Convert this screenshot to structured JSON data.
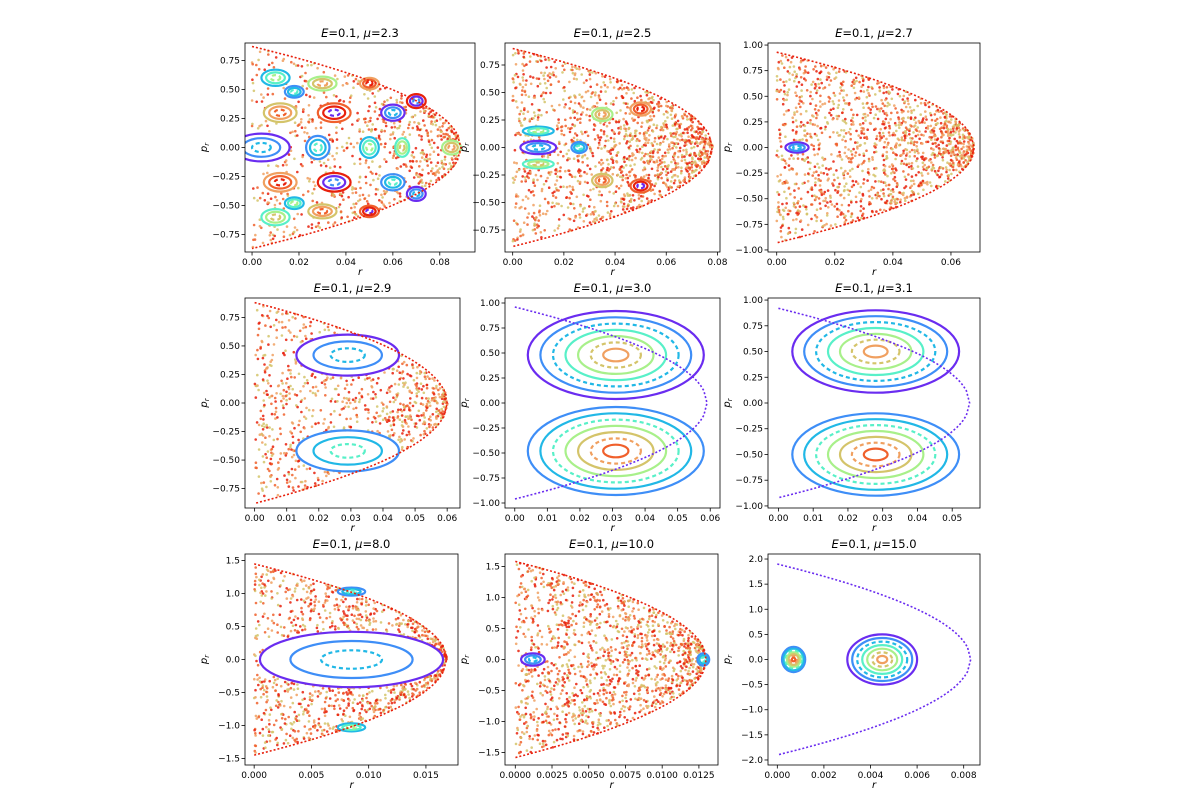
{
  "chart_data": [
    {
      "type": "scatter",
      "title_prefix": "E",
      "title_eq": "=0.1, ",
      "title_mu": "μ",
      "title_val": "=2.3",
      "xlabel": "r",
      "ylabel": "p",
      "ylabel_sub": "r",
      "xlim": [
        -0.003,
        0.095
      ],
      "ylim": [
        -0.9,
        0.9
      ],
      "xticks": [
        {
          "v": 0,
          "l": "0.00"
        },
        {
          "v": 0.02,
          "l": "0.02"
        },
        {
          "v": 0.04,
          "l": "0.04"
        },
        {
          "v": 0.06,
          "l": "0.06"
        },
        {
          "v": 0.08,
          "l": "0.08"
        }
      ],
      "yticks": [
        {
          "v": -0.75,
          "l": "−0.75"
        },
        {
          "v": -0.5,
          "l": "−0.50"
        },
        {
          "v": -0.25,
          "l": "−0.25"
        },
        {
          "v": 0,
          "l": "0.00"
        },
        {
          "v": 0.25,
          "l": "0.25"
        },
        {
          "v": 0.5,
          "l": "0.50"
        },
        {
          "v": 0.75,
          "l": "0.75"
        }
      ],
      "boundary": {
        "rmax": 0.089,
        "pmax": 0.87
      },
      "chaos": 0.6,
      "islands": [
        [
          0.004,
          0,
          0.012,
          0.12
        ],
        [
          0.028,
          0,
          0.005,
          0.1
        ],
        [
          0.05,
          0,
          0.004,
          0.09
        ],
        [
          0.064,
          0,
          0.003,
          0.08
        ],
        [
          0.085,
          0,
          0.004,
          0.06
        ],
        [
          0.012,
          0.3,
          0.007,
          0.08
        ],
        [
          0.012,
          -0.3,
          0.007,
          0.08
        ],
        [
          0.035,
          0.3,
          0.007,
          0.08
        ],
        [
          0.035,
          -0.3,
          0.007,
          0.08
        ],
        [
          0.06,
          0.3,
          0.005,
          0.07
        ],
        [
          0.06,
          -0.3,
          0.005,
          0.07
        ],
        [
          0.01,
          0.6,
          0.006,
          0.07
        ],
        [
          0.01,
          -0.6,
          0.006,
          0.07
        ],
        [
          0.03,
          0.55,
          0.006,
          0.06
        ],
        [
          0.03,
          -0.55,
          0.006,
          0.06
        ],
        [
          0.05,
          0.55,
          0.004,
          0.05
        ],
        [
          0.05,
          -0.55,
          0.004,
          0.05
        ],
        [
          0.07,
          0.4,
          0.004,
          0.06
        ],
        [
          0.07,
          -0.4,
          0.004,
          0.06
        ],
        [
          0.018,
          0.48,
          0.004,
          0.05
        ],
        [
          0.018,
          -0.48,
          0.004,
          0.05
        ]
      ]
    },
    {
      "type": "scatter",
      "title_prefix": "E",
      "title_eq": "=0.1, ",
      "title_mu": "μ",
      "title_val": "=2.5",
      "xlabel": "r",
      "ylabel": "p",
      "ylabel_sub": "r",
      "xlim": [
        -0.003,
        0.081
      ],
      "ylim": [
        -0.95,
        0.95
      ],
      "xticks": [
        {
          "v": 0,
          "l": "0.00"
        },
        {
          "v": 0.02,
          "l": "0.02"
        },
        {
          "v": 0.04,
          "l": "0.04"
        },
        {
          "v": 0.06,
          "l": "0.06"
        },
        {
          "v": 0.08,
          "l": "0.08"
        }
      ],
      "yticks": [
        {
          "v": -0.75,
          "l": "−0.75"
        },
        {
          "v": -0.5,
          "l": "−0.50"
        },
        {
          "v": -0.25,
          "l": "−0.25"
        },
        {
          "v": 0,
          "l": "0.00"
        },
        {
          "v": 0.25,
          "l": "0.25"
        },
        {
          "v": 0.5,
          "l": "0.50"
        },
        {
          "v": 0.75,
          "l": "0.75"
        }
      ],
      "boundary": {
        "rmax": 0.078,
        "pmax": 0.9
      },
      "chaos": 1.0,
      "islands": [
        [
          0.01,
          0,
          0.007,
          0.06
        ],
        [
          0.026,
          0,
          0.003,
          0.05
        ],
        [
          0.01,
          0.15,
          0.006,
          0.04
        ],
        [
          0.01,
          -0.15,
          0.006,
          0.04
        ],
        [
          0.035,
          0.3,
          0.004,
          0.06
        ],
        [
          0.035,
          -0.3,
          0.004,
          0.06
        ],
        [
          0.05,
          0.35,
          0.004,
          0.06
        ],
        [
          0.05,
          -0.35,
          0.004,
          0.06
        ]
      ]
    },
    {
      "type": "scatter",
      "title_prefix": "E",
      "title_eq": "=0.1, ",
      "title_mu": "μ",
      "title_val": "=2.7",
      "xlabel": "r",
      "ylabel": "p",
      "ylabel_sub": "r",
      "xlim": [
        -0.003,
        0.07
      ],
      "ylim": [
        -1.02,
        1.02
      ],
      "xticks": [
        {
          "v": 0,
          "l": "0.00"
        },
        {
          "v": 0.02,
          "l": "0.02"
        },
        {
          "v": 0.04,
          "l": "0.04"
        },
        {
          "v": 0.06,
          "l": "0.06"
        }
      ],
      "yticks": [
        {
          "v": -1,
          "l": "−1.00"
        },
        {
          "v": -0.75,
          "l": "−0.75"
        },
        {
          "v": -0.5,
          "l": "−0.50"
        },
        {
          "v": -0.25,
          "l": "−0.25"
        },
        {
          "v": 0,
          "l": "0.00"
        },
        {
          "v": 0.25,
          "l": "0.25"
        },
        {
          "v": 0.5,
          "l": "0.50"
        },
        {
          "v": 0.75,
          "l": "0.75"
        },
        {
          "v": 1,
          "l": "1.00"
        }
      ],
      "boundary": {
        "rmax": 0.068,
        "pmax": 0.93
      },
      "chaos": 1.0,
      "islands": [
        [
          0.007,
          0,
          0.004,
          0.05
        ]
      ]
    },
    {
      "type": "scatter",
      "title_prefix": "E",
      "title_eq": "=0.1, ",
      "title_mu": "μ",
      "title_val": "=2.9",
      "xlabel": "r",
      "ylabel": "p",
      "ylabel_sub": "r",
      "xlim": [
        -0.003,
        0.064
      ],
      "ylim": [
        -0.92,
        0.92
      ],
      "xticks": [
        {
          "v": 0,
          "l": "0.00"
        },
        {
          "v": 0.01,
          "l": "0.01"
        },
        {
          "v": 0.02,
          "l": "0.02"
        },
        {
          "v": 0.03,
          "l": "0.03"
        },
        {
          "v": 0.04,
          "l": "0.04"
        },
        {
          "v": 0.05,
          "l": "0.05"
        },
        {
          "v": 0.06,
          "l": "0.06"
        }
      ],
      "yticks": [
        {
          "v": -0.75,
          "l": "−0.75"
        },
        {
          "v": -0.5,
          "l": "−0.50"
        },
        {
          "v": -0.25,
          "l": "−0.25"
        },
        {
          "v": 0,
          "l": "0.00"
        },
        {
          "v": 0.25,
          "l": "0.25"
        },
        {
          "v": 0.5,
          "l": "0.50"
        },
        {
          "v": 0.75,
          "l": "0.75"
        }
      ],
      "boundary": {
        "rmax": 0.06,
        "pmax": 0.88
      },
      "chaos": 0.7,
      "islands": [
        [
          0.029,
          0.42,
          0.016,
          0.18
        ],
        [
          0.029,
          -0.42,
          0.016,
          0.18
        ]
      ]
    },
    {
      "type": "scatter",
      "title_prefix": "E",
      "title_eq": "=0.1, ",
      "title_mu": "μ",
      "title_val": "=3.0",
      "xlabel": "r",
      "ylabel": "p",
      "ylabel_sub": "r",
      "xlim": [
        -0.003,
        0.063
      ],
      "ylim": [
        -1.05,
        1.05
      ],
      "xticks": [
        {
          "v": 0,
          "l": "0.00"
        },
        {
          "v": 0.01,
          "l": "0.01"
        },
        {
          "v": 0.02,
          "l": "0.02"
        },
        {
          "v": 0.03,
          "l": "0.03"
        },
        {
          "v": 0.04,
          "l": "0.04"
        },
        {
          "v": 0.05,
          "l": "0.05"
        },
        {
          "v": 0.06,
          "l": "0.06"
        }
      ],
      "yticks": [
        {
          "v": -1,
          "l": "−1.00"
        },
        {
          "v": -0.75,
          "l": "−0.75"
        },
        {
          "v": -0.5,
          "l": "−0.50"
        },
        {
          "v": -0.25,
          "l": "−0.25"
        },
        {
          "v": 0,
          "l": "0.00"
        },
        {
          "v": 0.25,
          "l": "0.25"
        },
        {
          "v": 0.5,
          "l": "0.50"
        },
        {
          "v": 0.75,
          "l": "0.75"
        },
        {
          "v": 1,
          "l": "1.00"
        }
      ],
      "boundary": {
        "rmax": 0.059,
        "pmax": 0.96
      },
      "chaos": 0.0,
      "islands": [
        [
          0.031,
          0.48,
          0.027,
          0.44
        ],
        [
          0.031,
          -0.48,
          0.027,
          0.44
        ]
      ]
    },
    {
      "type": "scatter",
      "title_prefix": "E",
      "title_eq": "=0.1, ",
      "title_mu": "μ",
      "title_val": "=3.1",
      "xlabel": "r",
      "ylabel": "p",
      "ylabel_sub": "r",
      "xlim": [
        -0.003,
        0.058
      ],
      "ylim": [
        -1.02,
        1.02
      ],
      "xticks": [
        {
          "v": 0,
          "l": "0.00"
        },
        {
          "v": 0.01,
          "l": "0.01"
        },
        {
          "v": 0.02,
          "l": "0.02"
        },
        {
          "v": 0.03,
          "l": "0.03"
        },
        {
          "v": 0.04,
          "l": "0.04"
        },
        {
          "v": 0.05,
          "l": "0.05"
        }
      ],
      "yticks": [
        {
          "v": -1,
          "l": "−1.00"
        },
        {
          "v": -0.75,
          "l": "−0.75"
        },
        {
          "v": -0.5,
          "l": "−0.50"
        },
        {
          "v": -0.25,
          "l": "−0.25"
        },
        {
          "v": 0,
          "l": "0.00"
        },
        {
          "v": 0.25,
          "l": "0.25"
        },
        {
          "v": 0.5,
          "l": "0.50"
        },
        {
          "v": 0.75,
          "l": "0.75"
        },
        {
          "v": 1,
          "l": "1.00"
        }
      ],
      "boundary": {
        "rmax": 0.055,
        "pmax": 0.92
      },
      "chaos": 0.0,
      "islands": [
        [
          0.028,
          0.5,
          0.024,
          0.4
        ],
        [
          0.028,
          -0.5,
          0.024,
          0.4
        ]
      ]
    },
    {
      "type": "scatter",
      "title_prefix": "E",
      "title_eq": "=0.1, ",
      "title_mu": "μ",
      "title_val": "=8.0",
      "xlabel": "r",
      "ylabel": "p",
      "ylabel_sub": "r",
      "xlim": [
        -0.0008,
        0.0178
      ],
      "ylim": [
        -1.6,
        1.6
      ],
      "xticks": [
        {
          "v": 0,
          "l": "0.000"
        },
        {
          "v": 0.005,
          "l": "0.005"
        },
        {
          "v": 0.01,
          "l": "0.010"
        },
        {
          "v": 0.015,
          "l": "0.015"
        }
      ],
      "yticks": [
        {
          "v": -1.5,
          "l": "−1.5"
        },
        {
          "v": -1,
          "l": "−1.0"
        },
        {
          "v": -0.5,
          "l": "−0.5"
        },
        {
          "v": 0,
          "l": "0.0"
        },
        {
          "v": 0.5,
          "l": "0.5"
        },
        {
          "v": 1,
          "l": "1.0"
        },
        {
          "v": 1.5,
          "l": "1.5"
        }
      ],
      "boundary": {
        "rmax": 0.0168,
        "pmax": 1.45
      },
      "chaos": 1.0,
      "islands": [
        [
          0.0085,
          0,
          0.008,
          0.42
        ],
        [
          0.0085,
          1.03,
          0.0012,
          0.06
        ],
        [
          0.0085,
          -1.03,
          0.0012,
          0.06
        ]
      ]
    },
    {
      "type": "scatter",
      "title_prefix": "E",
      "title_eq": "=0.1, ",
      "title_mu": "μ",
      "title_val": "=10.0",
      "xlabel": "r",
      "ylabel": "p",
      "ylabel_sub": "r",
      "xlim": [
        -0.0007,
        0.0138
      ],
      "ylim": [
        -1.7,
        1.7
      ],
      "xticks": [
        {
          "v": 0,
          "l": "0.0000"
        },
        {
          "v": 0.0025,
          "l": "0.0025"
        },
        {
          "v": 0.005,
          "l": "0.0050"
        },
        {
          "v": 0.0075,
          "l": "0.0075"
        },
        {
          "v": 0.01,
          "l": "0.0100"
        },
        {
          "v": 0.0125,
          "l": "0.0125"
        }
      ],
      "yticks": [
        {
          "v": -1.5,
          "l": "−1.5"
        },
        {
          "v": -1,
          "l": "−1.0"
        },
        {
          "v": -0.5,
          "l": "−0.5"
        },
        {
          "v": 0,
          "l": "0.0"
        },
        {
          "v": 0.5,
          "l": "0.5"
        },
        {
          "v": 1,
          "l": "1.0"
        },
        {
          "v": 1.5,
          "l": "1.5"
        }
      ],
      "boundary": {
        "rmax": 0.013,
        "pmax": 1.58
      },
      "chaos": 1.0,
      "islands": [
        [
          0.0012,
          0,
          0.0008,
          0.1
        ],
        [
          0.0128,
          0,
          0.0004,
          0.1
        ]
      ]
    },
    {
      "type": "scatter",
      "title_prefix": "E",
      "title_eq": "=0.1, ",
      "title_mu": "μ",
      "title_val": "=15.0",
      "xlabel": "r",
      "ylabel": "p",
      "ylabel_sub": "r",
      "xlim": [
        -0.0004,
        0.0087
      ],
      "ylim": [
        -2.1,
        2.1
      ],
      "xticks": [
        {
          "v": 0,
          "l": "0.000"
        },
        {
          "v": 0.002,
          "l": "0.002"
        },
        {
          "v": 0.004,
          "l": "0.004"
        },
        {
          "v": 0.006,
          "l": "0.006"
        },
        {
          "v": 0.008,
          "l": "0.008"
        }
      ],
      "yticks": [
        {
          "v": -2,
          "l": "−2.0"
        },
        {
          "v": -1.5,
          "l": "−1.5"
        },
        {
          "v": -1,
          "l": "−1.0"
        },
        {
          "v": -0.5,
          "l": "−0.5"
        },
        {
          "v": 0,
          "l": "0.0"
        },
        {
          "v": 0.5,
          "l": "0.5"
        },
        {
          "v": 1,
          "l": "1.0"
        },
        {
          "v": 1.5,
          "l": "1.5"
        },
        {
          "v": 2,
          "l": "2.0"
        }
      ],
      "boundary": {
        "rmax": 0.0083,
        "pmax": 1.9
      },
      "chaos": 0.0,
      "islands": [
        [
          0.0045,
          0,
          0.0015,
          0.5
        ],
        [
          0.0007,
          0,
          0.0005,
          0.25
        ]
      ]
    }
  ],
  "palette": [
    "#6a2cf0",
    "#3e8ef7",
    "#21b8e6",
    "#58f0c8",
    "#a8f08a",
    "#d4c46a",
    "#f0a060",
    "#f0602c",
    "#e8200c"
  ]
}
